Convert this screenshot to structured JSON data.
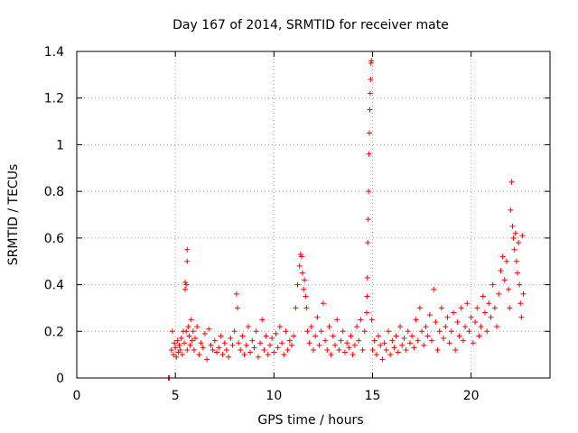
{
  "chart_data": {
    "type": "scatter",
    "title": "Day 167 of 2014, SRMTID for receiver mate",
    "xlabel": "GPS time / hours",
    "ylabel": "SRMTID / TECUs",
    "xlim": [
      0,
      24
    ],
    "ylim": [
      0,
      1.4
    ],
    "xticks": [
      0,
      5,
      10,
      15,
      20
    ],
    "xtick_labels": [
      "0",
      "5",
      "10",
      "15",
      "20"
    ],
    "yticks": [
      0,
      0.2,
      0.4,
      0.6,
      0.8,
      1.0,
      1.2,
      1.4
    ],
    "ytick_labels": [
      "0",
      "0.2",
      "0.4",
      "0.6",
      "0.8",
      "1",
      "1.2",
      "1.4"
    ],
    "grid": true,
    "marker": "+",
    "color": "#ff0000",
    "series": [
      {
        "name": "SRMTID",
        "x": [
          4.65,
          4.7,
          4.8,
          4.85,
          4.9,
          4.95,
          5.0,
          5.05,
          5.1,
          5.15,
          5.2,
          5.25,
          5.3,
          5.35,
          5.4,
          5.45,
          5.5,
          5.5,
          5.55,
          5.55,
          5.6,
          5.6,
          5.6,
          5.65,
          5.7,
          5.75,
          5.8,
          5.85,
          5.9,
          5.95,
          6.0,
          6.1,
          6.2,
          6.3,
          6.4,
          6.5,
          6.6,
          6.7,
          6.8,
          6.9,
          7.0,
          7.1,
          7.2,
          7.3,
          7.4,
          7.5,
          7.6,
          7.7,
          7.8,
          7.9,
          8.0,
          8.1,
          8.15,
          8.2,
          8.3,
          8.4,
          8.5,
          8.6,
          8.7,
          8.8,
          8.9,
          9.0,
          9.1,
          9.2,
          9.3,
          9.4,
          9.5,
          9.6,
          9.7,
          9.8,
          9.9,
          10.0,
          10.1,
          10.2,
          10.3,
          10.4,
          10.5,
          10.6,
          10.7,
          10.8,
          10.9,
          11.0,
          11.1,
          11.2,
          11.3,
          11.35,
          11.4,
          11.45,
          11.5,
          11.55,
          11.6,
          11.65,
          11.7,
          11.8,
          11.9,
          12.0,
          12.1,
          12.2,
          12.3,
          12.4,
          12.5,
          12.6,
          12.7,
          12.8,
          12.9,
          13.0,
          13.1,
          13.2,
          13.3,
          13.4,
          13.5,
          13.6,
          13.7,
          13.8,
          13.9,
          14.0,
          14.1,
          14.2,
          14.3,
          14.4,
          14.5,
          14.6,
          14.7,
          14.72,
          14.74,
          14.76,
          14.78,
          14.8,
          14.82,
          14.84,
          14.86,
          14.88,
          14.9,
          14.92,
          14.94,
          14.96,
          15.0,
          15.1,
          15.2,
          15.3,
          15.4,
          15.5,
          15.6,
          15.7,
          15.8,
          15.9,
          16.0,
          16.1,
          16.2,
          16.3,
          16.4,
          16.5,
          16.6,
          16.7,
          16.8,
          16.9,
          17.0,
          17.1,
          17.2,
          17.3,
          17.4,
          17.5,
          17.6,
          17.7,
          17.8,
          17.9,
          18.0,
          18.1,
          18.2,
          18.3,
          18.4,
          18.5,
          18.6,
          18.7,
          18.8,
          18.9,
          19.0,
          19.1,
          19.2,
          19.3,
          19.4,
          19.5,
          19.6,
          19.7,
          19.8,
          19.9,
          20.0,
          20.1,
          20.2,
          20.3,
          20.4,
          20.5,
          20.6,
          20.7,
          20.8,
          20.9,
          21.0,
          21.1,
          21.2,
          21.3,
          21.4,
          21.5,
          21.6,
          21.7,
          21.8,
          21.9,
          21.95,
          22.0,
          22.05,
          22.1,
          22.15,
          22.2,
          22.25,
          22.3,
          22.35,
          22.4,
          22.45,
          22.5,
          22.55,
          22.6,
          22.65
        ],
        "y": [
          0.0,
          0.0,
          0.12,
          0.2,
          0.1,
          0.15,
          0.13,
          0.09,
          0.16,
          0.11,
          0.14,
          0.12,
          0.17,
          0.1,
          0.2,
          0.15,
          0.38,
          0.41,
          0.4,
          0.2,
          0.55,
          0.5,
          0.12,
          0.22,
          0.18,
          0.14,
          0.25,
          0.16,
          0.2,
          0.12,
          0.17,
          0.22,
          0.1,
          0.15,
          0.13,
          0.19,
          0.08,
          0.21,
          0.14,
          0.12,
          0.16,
          0.11,
          0.13,
          0.18,
          0.1,
          0.15,
          0.12,
          0.09,
          0.17,
          0.14,
          0.2,
          0.36,
          0.3,
          0.15,
          0.12,
          0.18,
          0.1,
          0.14,
          0.22,
          0.11,
          0.16,
          0.13,
          0.2,
          0.09,
          0.15,
          0.25,
          0.12,
          0.18,
          0.1,
          0.14,
          0.17,
          0.11,
          0.19,
          0.13,
          0.22,
          0.15,
          0.1,
          0.2,
          0.12,
          0.16,
          0.14,
          0.18,
          0.3,
          0.4,
          0.48,
          0.53,
          0.52,
          0.45,
          0.38,
          0.42,
          0.35,
          0.3,
          0.2,
          0.15,
          0.22,
          0.12,
          0.18,
          0.26,
          0.14,
          0.2,
          0.32,
          0.16,
          0.12,
          0.22,
          0.1,
          0.18,
          0.14,
          0.25,
          0.12,
          0.16,
          0.2,
          0.11,
          0.15,
          0.13,
          0.18,
          0.1,
          0.14,
          0.22,
          0.16,
          0.25,
          0.12,
          0.2,
          0.28,
          0.35,
          0.43,
          0.58,
          0.68,
          0.8,
          0.96,
          1.05,
          1.15,
          1.22,
          1.28,
          1.35,
          1.36,
          0.25,
          0.12,
          0.16,
          0.1,
          0.18,
          0.14,
          0.08,
          0.15,
          0.12,
          0.2,
          0.1,
          0.16,
          0.13,
          0.18,
          0.11,
          0.22,
          0.14,
          0.17,
          0.12,
          0.2,
          0.15,
          0.18,
          0.13,
          0.25,
          0.16,
          0.3,
          0.2,
          0.14,
          0.22,
          0.18,
          0.27,
          0.16,
          0.38,
          0.24,
          0.12,
          0.2,
          0.3,
          0.17,
          0.22,
          0.26,
          0.15,
          0.2,
          0.28,
          0.12,
          0.24,
          0.18,
          0.3,
          0.16,
          0.22,
          0.32,
          0.2,
          0.26,
          0.15,
          0.24,
          0.3,
          0.18,
          0.22,
          0.35,
          0.28,
          0.2,
          0.32,
          0.26,
          0.4,
          0.3,
          0.22,
          0.36,
          0.46,
          0.52,
          0.42,
          0.5,
          0.38,
          0.3,
          0.72,
          0.84,
          0.65,
          0.6,
          0.55,
          0.62,
          0.5,
          0.45,
          0.58,
          0.4,
          0.32,
          0.26,
          0.61,
          0.36
        ]
      }
    ]
  }
}
